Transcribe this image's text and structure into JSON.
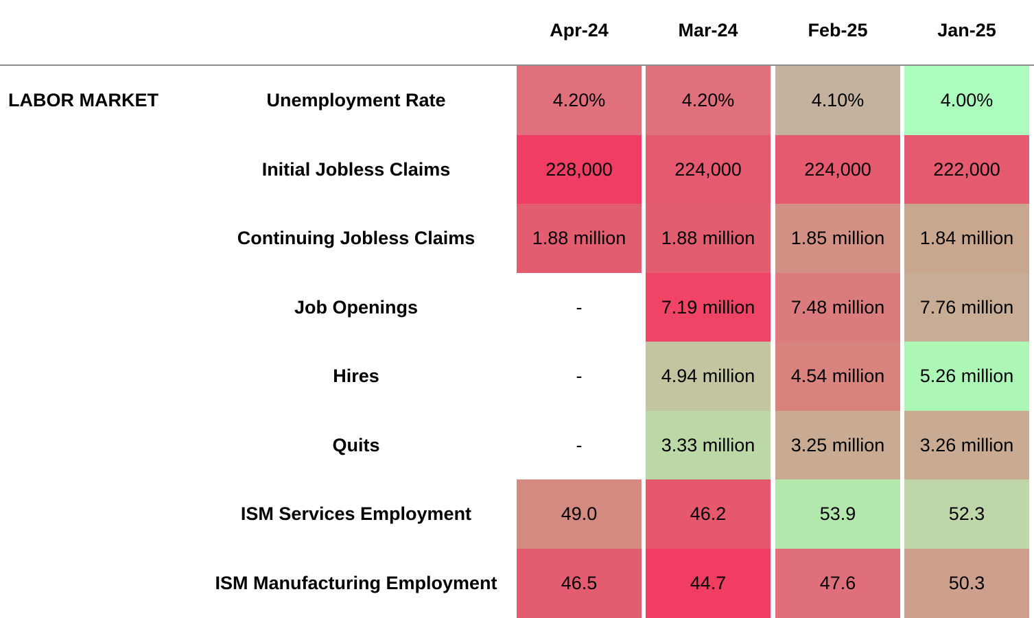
{
  "section_label": "LABOR MARKET",
  "chart_data": {
    "type": "table",
    "columns": [
      "Apr-24",
      "Mar-24",
      "Feb-25",
      "Jan-25"
    ],
    "rows": [
      {
        "label": "Unemployment Rate",
        "cells": [
          {
            "text": "4.20%",
            "color": "#df707c"
          },
          {
            "text": "4.20%",
            "color": "#df707c"
          },
          {
            "text": "4.10%",
            "color": "#c4b29f"
          },
          {
            "text": "4.00%",
            "color": "#abfcbd"
          }
        ]
      },
      {
        "label": "Initial Jobless Claims",
        "cells": [
          {
            "text": "228,000",
            "color": "#f03d64"
          },
          {
            "text": "224,000",
            "color": "#e55a6e"
          },
          {
            "text": "224,000",
            "color": "#e55a6e"
          },
          {
            "text": "222,000",
            "color": "#e55a6e"
          }
        ]
      },
      {
        "label": "Continuing Jobless Claims",
        "cells": [
          {
            "text": "1.88 million",
            "color": "#e35d70"
          },
          {
            "text": "1.88 million",
            "color": "#e35d70"
          },
          {
            "text": "1.85 million",
            "color": "#d39185"
          },
          {
            "text": "1.84 million",
            "color": "#c9a78f"
          }
        ]
      },
      {
        "label": "Job Openings",
        "cells": [
          {
            "text": "-",
            "color": ""
          },
          {
            "text": "7.19 million",
            "color": "#ef4466"
          },
          {
            "text": "7.48 million",
            "color": "#da7b7d"
          },
          {
            "text": "7.76 million",
            "color": "#c8ad96"
          }
        ]
      },
      {
        "label": "Hires",
        "cells": [
          {
            "text": "-",
            "color": ""
          },
          {
            "text": "4.94 million",
            "color": "#c2c5a0"
          },
          {
            "text": "4.54 million",
            "color": "#d9837f"
          },
          {
            "text": "5.26 million",
            "color": "#acf7b6"
          }
        ]
      },
      {
        "label": "Quits",
        "cells": [
          {
            "text": "-",
            "color": ""
          },
          {
            "text": "3.33 million",
            "color": "#bcd8a7"
          },
          {
            "text": "3.25 million",
            "color": "#c9ab94"
          },
          {
            "text": "3.26 million",
            "color": "#c9ab94"
          }
        ]
      },
      {
        "label": "ISM Services Employment",
        "cells": [
          {
            "text": "49.0",
            "color": "#d48a80"
          },
          {
            "text": "46.2",
            "color": "#e6586e"
          },
          {
            "text": "53.9",
            "color": "#b3e8ad"
          },
          {
            "text": "52.3",
            "color": "#bfd6a8"
          }
        ]
      },
      {
        "label": "ISM Manufacturing Employment",
        "cells": [
          {
            "text": "46.5",
            "color": "#e45c6f"
          },
          {
            "text": "44.7",
            "color": "#f23d63"
          },
          {
            "text": "47.6",
            "color": "#df6f7a"
          },
          {
            "text": "50.3",
            "color": "#cda08d"
          }
        ]
      }
    ]
  }
}
